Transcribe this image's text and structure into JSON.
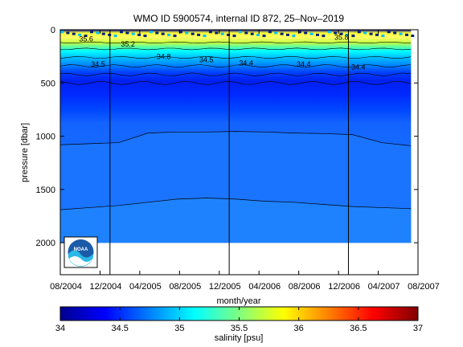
{
  "chart_data": [
    {
      "type": "heatmap",
      "title": "WMO ID 5900574, internal ID 872, 25–Nov–2019",
      "xlabel": "month/year",
      "ylabel": "pressure [dbar]",
      "x_tick_labels": [
        "08/2004",
        "12/2004",
        "04/2005",
        "08/2005",
        "12/2005",
        "04/2006",
        "08/2006",
        "12/2006",
        "04/2007",
        "08/2007"
      ],
      "y_ticks": [
        0,
        500,
        1000,
        1500,
        2000
      ],
      "ylim": [
        2300,
        0
      ],
      "year_divider_months": [
        5,
        17,
        29
      ],
      "x_range_months": [
        0,
        36
      ],
      "data_extent_months": [
        0,
        35.3
      ],
      "contours": [
        {
          "label": "35.6",
          "x_month": 2.6,
          "pressure": 110
        },
        {
          "label": "35.2",
          "x_month": 6.8,
          "pressure": 160
        },
        {
          "label": "34.8",
          "x_month": 10.4,
          "pressure": 275
        },
        {
          "label": "34.5",
          "x_month": 3.8,
          "pressure": 345
        },
        {
          "label": "34.5",
          "x_month": 14.7,
          "pressure": 305
        },
        {
          "label": "34.4",
          "x_month": 18.7,
          "pressure": 335
        },
        {
          "label": "34.4",
          "x_month": 24.5,
          "pressure": 345
        },
        {
          "label": "34.4",
          "x_month": 30.0,
          "pressure": 375
        },
        {
          "label": "35.8",
          "x_month": 28.3,
          "pressure": 95
        }
      ],
      "deep_isohalines": [
        {
          "name": "upper",
          "pressure_profile": [
            1080,
            1070,
            1060,
            970,
            960,
            960,
            955,
            960,
            970,
            975,
            985,
            1060,
            1090
          ]
        },
        {
          "name": "lower",
          "pressure_profile": [
            1690,
            1670,
            1650,
            1620,
            1590,
            1580,
            1590,
            1610,
            1620,
            1640,
            1660,
            1670,
            1680
          ]
        }
      ],
      "colors": {
        "surface_deep": "#1e78f0",
        "mid_blue": "#1464ff",
        "intermediate": "#1a6cff",
        "deep": "#1a74ff",
        "bottom": "#1e82ff"
      }
    },
    {
      "type": "colorbar",
      "xlabel": "salinity [psu]",
      "range": [
        34,
        37
      ],
      "ticks": [
        34,
        34.5,
        35,
        35.5,
        36,
        36.5,
        37
      ],
      "tick_labels": [
        "34",
        "34.5",
        "35",
        "35.5",
        "36",
        "36.5",
        "37"
      ],
      "colormap": [
        "#00008f",
        "#0000ff",
        "#0080ff",
        "#00ffff",
        "#80ff80",
        "#ffff00",
        "#ff8000",
        "#ff0000",
        "#800000"
      ]
    }
  ],
  "logo": {
    "text": "NOAA",
    "icon": "noaa-logo"
  }
}
